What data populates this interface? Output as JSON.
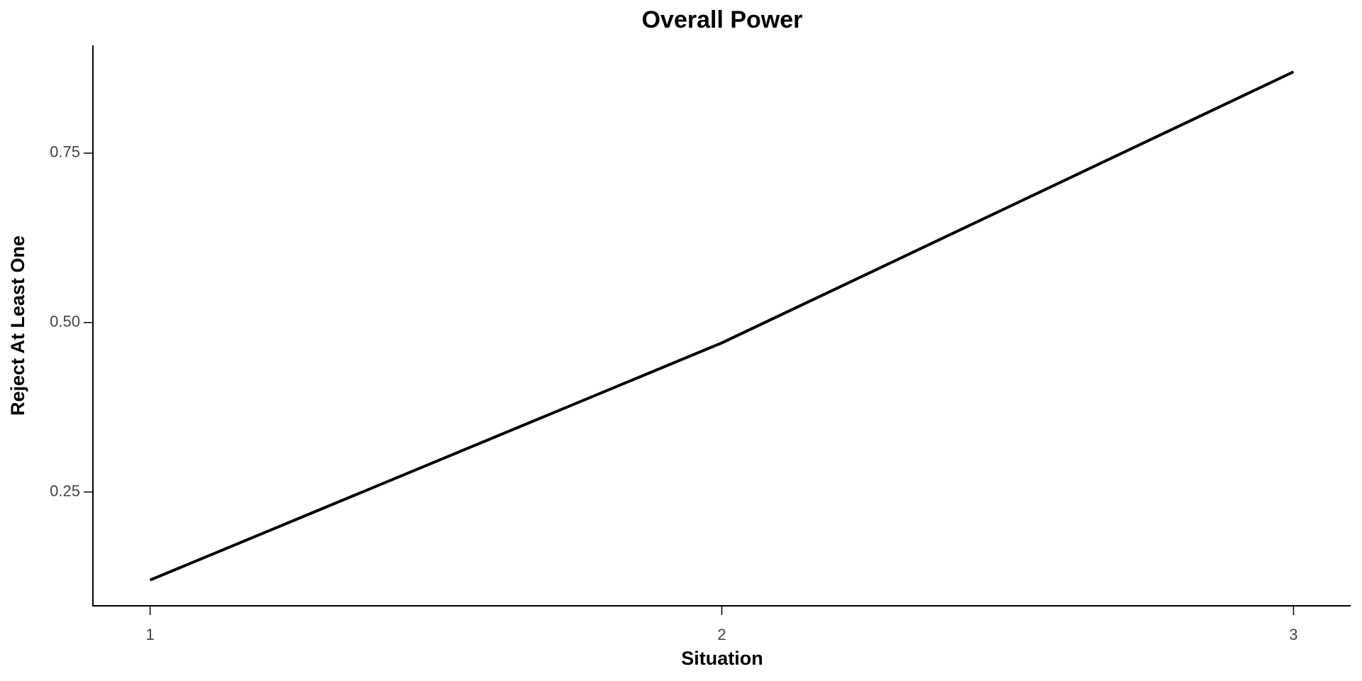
{
  "chart_data": {
    "type": "line",
    "title": "Overall Power",
    "x_label": "Situation",
    "y_label": "Reject At Least One",
    "x": [
      1,
      2,
      3
    ],
    "values": [
      0.12,
      0.47,
      0.87
    ],
    "color": "#000000",
    "xlim": [
      0.9,
      3.1
    ],
    "ylim": [
      0.082,
      0.909
    ],
    "xticks": [
      1,
      2,
      3
    ],
    "yticks": [
      0.25,
      {
        "value": 0.5,
        "label": "0.50"
      },
      0.75
    ]
  }
}
